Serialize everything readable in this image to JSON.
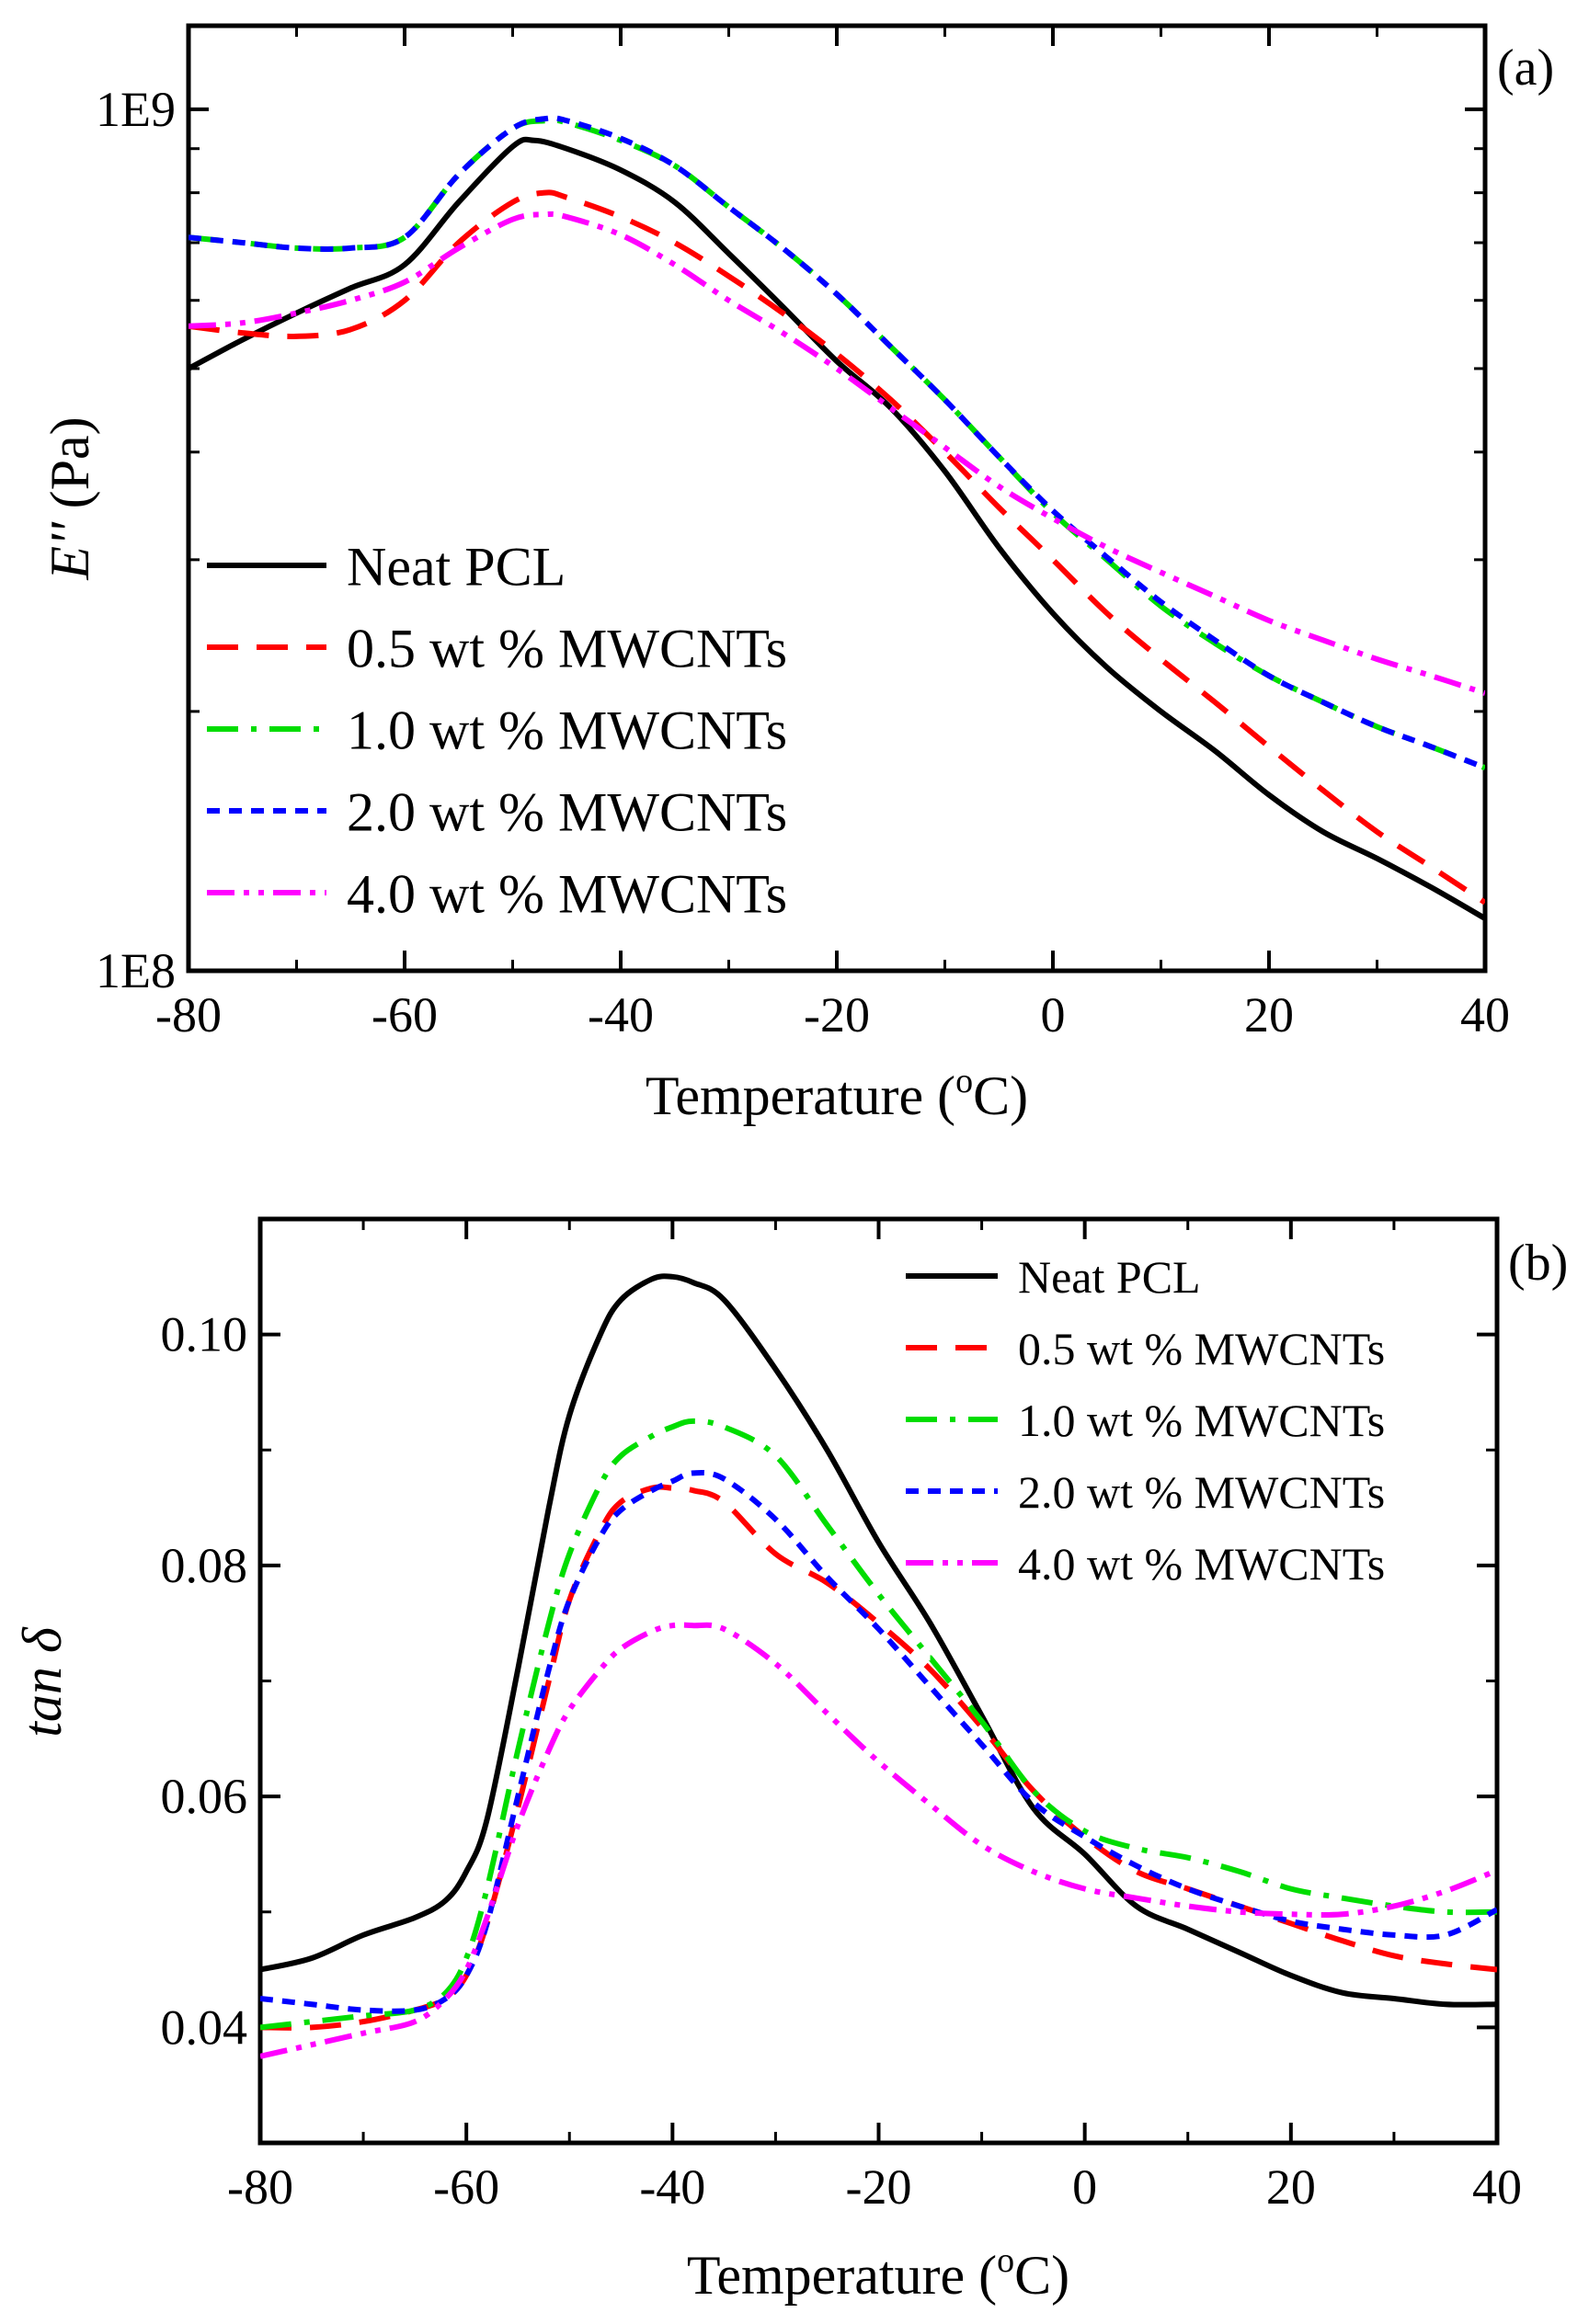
{
  "chart_data": [
    {
      "type": "line",
      "panel_label": "(a)",
      "xlabel": "Temperature (",
      "xlabel_sup": "o",
      "xlabel_unit": "C)",
      "ylabel_main": "E''",
      "ylabel_unit": " (Pa)",
      "yscale": "log",
      "xlim": [
        -80,
        40
      ],
      "ylim": [
        100000000.0,
        1250000000.0
      ],
      "xticks": [
        -80,
        -60,
        -40,
        -20,
        0,
        20,
        40
      ],
      "xtick_labels": [
        "-80",
        "-60",
        "-40",
        "-20",
        "0",
        "20",
        "40"
      ],
      "yticks": [
        100000000.0,
        1000000000.0
      ],
      "ytick_labels": [
        "1E8",
        "1E9"
      ],
      "legend_position": "lower-left",
      "series": [
        {
          "name": "Neat PCL",
          "color": "#000000",
          "dash": "solid",
          "x": [
            -80,
            -75,
            -70,
            -65,
            -60,
            -55,
            -50,
            -48,
            -45,
            -40,
            -35,
            -30,
            -25,
            -20,
            -15,
            -10,
            -5,
            0,
            5,
            10,
            15,
            20,
            25,
            30,
            35,
            40
          ],
          "y": [
            500000000.0,
            540000000.0,
            580000000.0,
            620000000.0,
            660000000.0,
            780000000.0,
            905000000.0,
            920000000.0,
            900000000.0,
            850000000.0,
            780000000.0,
            680000000.0,
            590000000.0,
            510000000.0,
            450000000.0,
            380000000.0,
            310000000.0,
            260000000.0,
            225000000.0,
            200000000.0,
            180000000.0,
            160000000.0,
            145000000.0,
            135000000.0,
            125000000.0,
            115000000.0
          ]
        },
        {
          "name": "0.5 wt % MWCNTs",
          "color": "#ff0000",
          "dash": "long-dash",
          "x": [
            -80,
            -75,
            -70,
            -65,
            -60,
            -55,
            -50,
            -47,
            -45,
            -40,
            -35,
            -30,
            -25,
            -20,
            -15,
            -10,
            -5,
            0,
            5,
            10,
            15,
            20,
            25,
            30,
            35,
            40
          ],
          "y": [
            560000000.0,
            550000000.0,
            545000000.0,
            555000000.0,
            600000000.0,
            700000000.0,
            780000000.0,
            800000000.0,
            790000000.0,
            750000000.0,
            700000000.0,
            640000000.0,
            580000000.0,
            520000000.0,
            460000000.0,
            400000000.0,
            345000000.0,
            300000000.0,
            260000000.0,
            230000000.0,
            205000000.0,
            182000000.0,
            162000000.0,
            145000000.0,
            132000000.0,
            120000000.0
          ]
        },
        {
          "name": "1.0 wt % MWCNTs",
          "color": "#00dd00",
          "dash": "dash-dot",
          "x": [
            -80,
            -75,
            -70,
            -65,
            -60,
            -55,
            -50,
            -47,
            -45,
            -40,
            -35,
            -30,
            -25,
            -20,
            -15,
            -10,
            -5,
            0,
            5,
            10,
            15,
            20,
            25,
            30,
            35,
            40
          ],
          "y": [
            710000000.0,
            700000000.0,
            690000000.0,
            690000000.0,
            710000000.0,
            840000000.0,
            950000000.0,
            970000000.0,
            965000000.0,
            920000000.0,
            860000000.0,
            770000000.0,
            690000000.0,
            610000000.0,
            530000000.0,
            460000000.0,
            395000000.0,
            340000000.0,
            300000000.0,
            265000000.0,
            240000000.0,
            220000000.0,
            205000000.0,
            192000000.0,
            182000000.0,
            172000000.0
          ]
        },
        {
          "name": "2.0 wt % MWCNTs",
          "color": "#0000ff",
          "dash": "short-dash",
          "x": [
            -80,
            -75,
            -70,
            -65,
            -60,
            -55,
            -50,
            -47,
            -45,
            -40,
            -35,
            -30,
            -25,
            -20,
            -15,
            -10,
            -5,
            0,
            5,
            10,
            15,
            20,
            25,
            30,
            35,
            40
          ],
          "y": [
            710000000.0,
            700000000.0,
            690000000.0,
            690000000.0,
            710000000.0,
            840000000.0,
            950000000.0,
            975000000.0,
            970000000.0,
            925000000.0,
            860000000.0,
            770000000.0,
            690000000.0,
            610000000.0,
            530000000.0,
            460000000.0,
            395000000.0,
            342000000.0,
            302000000.0,
            268000000.0,
            242000000.0,
            220000000.0,
            205000000.0,
            192000000.0,
            182000000.0,
            172000000.0
          ]
        },
        {
          "name": "4.0 wt % MWCNTs",
          "color": "#ff00ff",
          "dash": "dash-dot-dot",
          "x": [
            -80,
            -75,
            -70,
            -65,
            -60,
            -55,
            -50,
            -47,
            -45,
            -40,
            -35,
            -30,
            -25,
            -20,
            -15,
            -10,
            -5,
            0,
            5,
            10,
            15,
            20,
            25,
            30,
            35,
            40
          ],
          "y": [
            560000000.0,
            565000000.0,
            580000000.0,
            600000000.0,
            630000000.0,
            690000000.0,
            745000000.0,
            755000000.0,
            750000000.0,
            715000000.0,
            660000000.0,
            600000000.0,
            550000000.0,
            500000000.0,
            450000000.0,
            405000000.0,
            365000000.0,
            335000000.0,
            310000000.0,
            290000000.0,
            272000000.0,
            255000000.0,
            242000000.0,
            230000000.0,
            220000000.0,
            210000000.0
          ]
        }
      ]
    },
    {
      "type": "line",
      "panel_label": "(b)",
      "xlabel": "Temperature (",
      "xlabel_sup": "o",
      "xlabel_unit": "C)",
      "ylabel_main": "tan δ",
      "xlim": [
        -80,
        40
      ],
      "ylim": [
        0.03,
        0.11
      ],
      "xticks": [
        -80,
        -60,
        -40,
        -20,
        0,
        20,
        40
      ],
      "xtick_labels": [
        "-80",
        "-60",
        "-40",
        "-20",
        "0",
        "20",
        "40"
      ],
      "yticks": [
        0.04,
        0.06,
        0.08,
        0.1
      ],
      "ytick_labels": [
        "0.04",
        "0.06",
        "0.08",
        "0.10"
      ],
      "legend_position": "top-right",
      "series": [
        {
          "name": "Neat PCL",
          "color": "#000000",
          "dash": "solid",
          "x": [
            -80,
            -75,
            -70,
            -65,
            -62,
            -60,
            -58,
            -55,
            -52,
            -50,
            -47,
            -45,
            -42,
            -40,
            -38,
            -35,
            -30,
            -25,
            -20,
            -15,
            -10,
            -5,
            0,
            5,
            10,
            15,
            20,
            25,
            30,
            35,
            40
          ],
          "y": [
            0.045,
            0.046,
            0.048,
            0.0495,
            0.051,
            0.0535,
            0.058,
            0.071,
            0.085,
            0.093,
            0.1,
            0.103,
            0.1048,
            0.105,
            0.1045,
            0.103,
            0.097,
            0.09,
            0.082,
            0.075,
            0.067,
            0.059,
            0.055,
            0.0505,
            0.0485,
            0.0465,
            0.0445,
            0.043,
            0.0425,
            0.042,
            0.042
          ]
        },
        {
          "name": "0.5 wt % MWCNTs",
          "color": "#ff0000",
          "dash": "long-dash",
          "x": [
            -80,
            -75,
            -70,
            -65,
            -62,
            -60,
            -58,
            -55,
            -52,
            -50,
            -47,
            -45,
            -42,
            -40,
            -38,
            -35,
            -30,
            -25,
            -20,
            -15,
            -10,
            -5,
            0,
            5,
            10,
            15,
            20,
            25,
            30,
            35,
            40
          ],
          "y": [
            0.04,
            0.04,
            0.0405,
            0.0415,
            0.0425,
            0.0445,
            0.049,
            0.059,
            0.07,
            0.077,
            0.083,
            0.0855,
            0.0867,
            0.0867,
            0.0865,
            0.0855,
            0.081,
            0.0785,
            0.075,
            0.071,
            0.066,
            0.0605,
            0.0565,
            0.0535,
            0.052,
            0.0505,
            0.049,
            0.0475,
            0.0462,
            0.0455,
            0.045
          ]
        },
        {
          "name": "1.0 wt % MWCNTs",
          "color": "#00dd00",
          "dash": "dash-dot",
          "x": [
            -80,
            -75,
            -70,
            -65,
            -62,
            -60,
            -58,
            -55,
            -52,
            -50,
            -47,
            -45,
            -42,
            -40,
            -38,
            -35,
            -30,
            -25,
            -20,
            -15,
            -10,
            -5,
            0,
            5,
            10,
            15,
            20,
            25,
            30,
            35,
            40
          ],
          "y": [
            0.04,
            0.0405,
            0.041,
            0.0415,
            0.043,
            0.046,
            0.052,
            0.064,
            0.075,
            0.081,
            0.087,
            0.0895,
            0.0912,
            0.092,
            0.0925,
            0.092,
            0.0895,
            0.0835,
            0.0775,
            0.072,
            0.0665,
            0.0605,
            0.057,
            0.0555,
            0.0547,
            0.0535,
            0.052,
            0.0512,
            0.0505,
            0.05,
            0.05
          ]
        },
        {
          "name": "2.0 wt % MWCNTs",
          "color": "#0000ff",
          "dash": "short-dash",
          "x": [
            -80,
            -75,
            -70,
            -65,
            -62,
            -60,
            -58,
            -55,
            -52,
            -50,
            -47,
            -45,
            -42,
            -40,
            -38,
            -35,
            -30,
            -25,
            -20,
            -15,
            -10,
            -5,
            0,
            5,
            10,
            15,
            20,
            25,
            30,
            35,
            40
          ],
          "y": [
            0.0425,
            0.042,
            0.0415,
            0.0415,
            0.0425,
            0.0445,
            0.049,
            0.06,
            0.071,
            0.077,
            0.0825,
            0.0848,
            0.0865,
            0.0873,
            0.088,
            0.0875,
            0.084,
            0.079,
            0.0745,
            0.0695,
            0.0645,
            0.0595,
            0.0565,
            0.054,
            0.052,
            0.0505,
            0.0492,
            0.0485,
            0.048,
            0.048,
            0.0502
          ]
        },
        {
          "name": "4.0 wt % MWCNTs",
          "color": "#ff00ff",
          "dash": "dash-dot-dot",
          "x": [
            -80,
            -75,
            -70,
            -65,
            -62,
            -60,
            -58,
            -55,
            -52,
            -50,
            -47,
            -45,
            -42,
            -40,
            -38,
            -35,
            -30,
            -25,
            -20,
            -15,
            -10,
            -5,
            0,
            5,
            10,
            15,
            20,
            25,
            30,
            35,
            40
          ],
          "y": [
            0.0375,
            0.0385,
            0.0395,
            0.0405,
            0.0425,
            0.045,
            0.0495,
            0.0575,
            0.064,
            0.0675,
            0.071,
            0.0728,
            0.0743,
            0.0748,
            0.0748,
            0.0745,
            0.0715,
            0.0672,
            0.063,
            0.0593,
            0.0558,
            0.0535,
            0.052,
            0.0512,
            0.0505,
            0.05,
            0.0498,
            0.0498,
            0.0505,
            0.0518,
            0.0536
          ]
        }
      ]
    }
  ]
}
